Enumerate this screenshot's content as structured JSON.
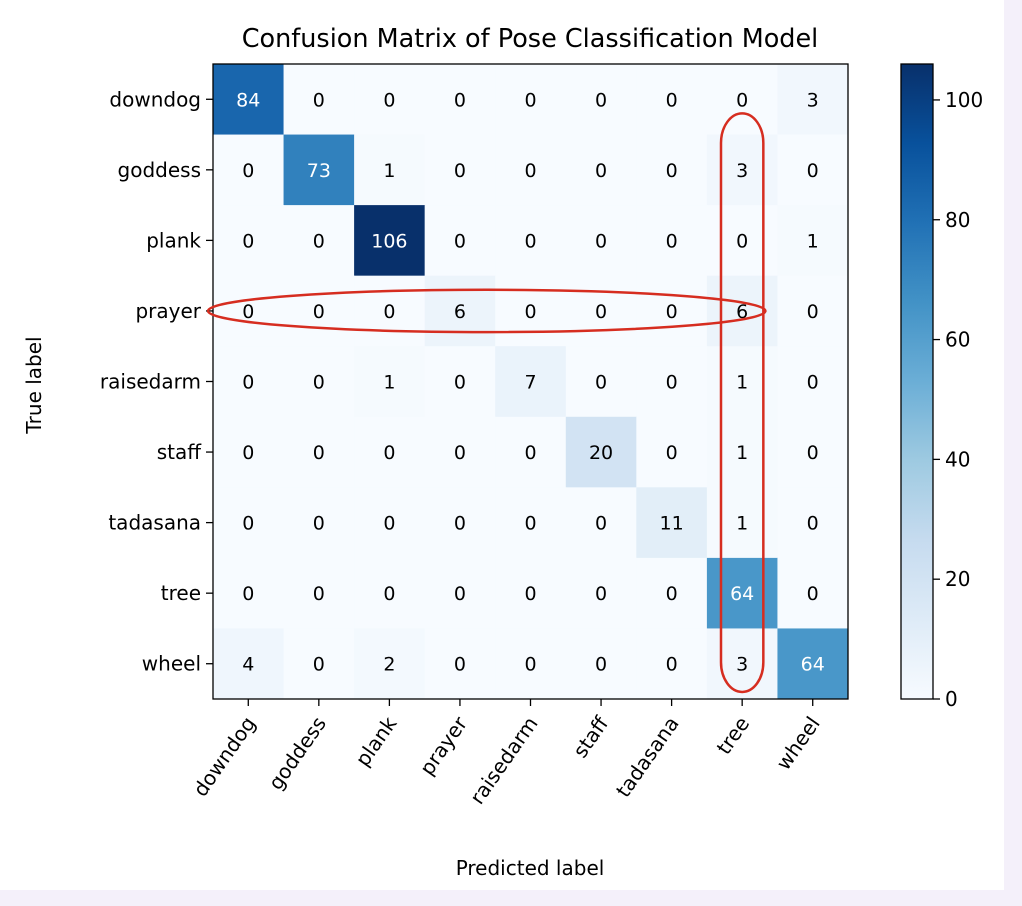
{
  "colors": {
    "low": "#f7fbff",
    "high": "#08306b",
    "annotation": "#d62d20"
  },
  "chart_data": {
    "type": "heatmap",
    "title": "Confusion Matrix of Pose Classification Model",
    "xlabel": "Predicted label",
    "ylabel": "True label",
    "x_categories": [
      "downdog",
      "goddess",
      "plank",
      "prayer",
      "raisedarm",
      "staff",
      "tadasana",
      "tree",
      "wheel"
    ],
    "y_categories": [
      "downdog",
      "goddess",
      "plank",
      "prayer",
      "raisedarm",
      "staff",
      "tadasana",
      "tree",
      "wheel"
    ],
    "values": [
      [
        84,
        0,
        0,
        0,
        0,
        0,
        0,
        0,
        3
      ],
      [
        0,
        73,
        1,
        0,
        0,
        0,
        0,
        3,
        0
      ],
      [
        0,
        0,
        106,
        0,
        0,
        0,
        0,
        0,
        1
      ],
      [
        0,
        0,
        0,
        6,
        0,
        0,
        0,
        6,
        0
      ],
      [
        0,
        0,
        1,
        0,
        7,
        0,
        0,
        1,
        0
      ],
      [
        0,
        0,
        0,
        0,
        0,
        20,
        0,
        1,
        0
      ],
      [
        0,
        0,
        0,
        0,
        0,
        0,
        11,
        1,
        0
      ],
      [
        0,
        0,
        0,
        0,
        0,
        0,
        0,
        64,
        0
      ],
      [
        4,
        0,
        2,
        0,
        0,
        0,
        0,
        3,
        64
      ]
    ],
    "colorbar": {
      "range": [
        0,
        106
      ],
      "ticks": [
        0,
        20,
        40,
        60,
        80,
        100
      ]
    },
    "highlights": [
      {
        "kind": "row",
        "category": "prayer"
      },
      {
        "kind": "column",
        "category": "tree"
      }
    ]
  }
}
